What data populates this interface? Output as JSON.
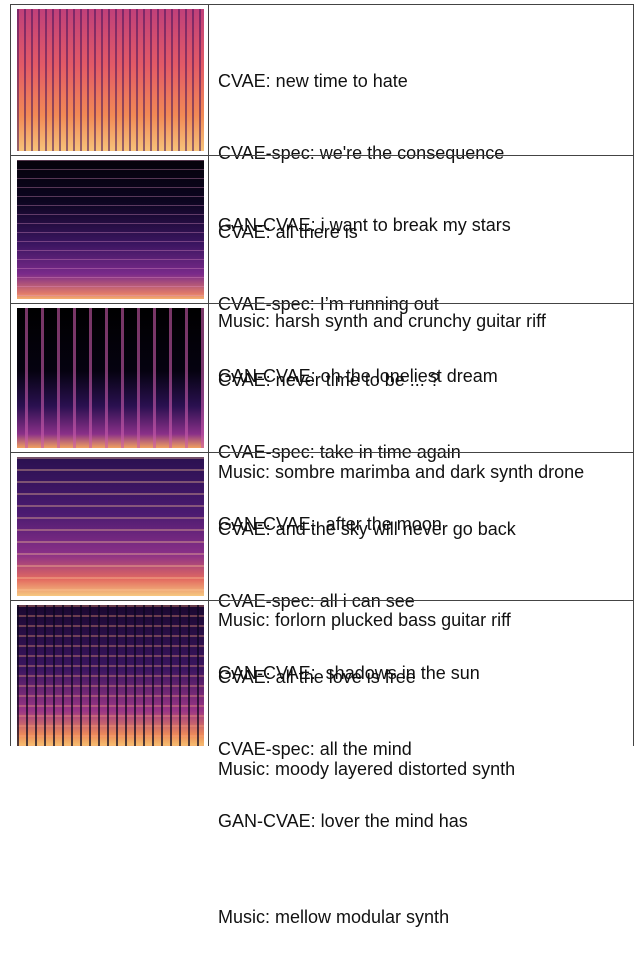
{
  "rows": [
    {
      "lines": [
        "CVAE: new time to hate",
        "CVAE-spec: we're the consequence",
        "GAN-CVAE: i want to break my stars"
      ],
      "music": "Music: harsh synth and crunchy guitar riff"
    },
    {
      "lines": [
        "CVAE: all there is",
        "CVAE-spec: I’m running out",
        "GAN-CVAE: oh the loneliest dream"
      ],
      "music": "Music: sombre marimba and dark synth drone"
    },
    {
      "lines": [
        "CVAE: never time to be ... ?",
        "CVAE-spec: take in time again",
        "GAN-CVAE:  after the moon"
      ],
      "music": "Music: forlorn plucked bass guitar riff"
    },
    {
      "lines": [
        "CVAE: and the sky will never go back",
        "CVAE-spec: all i can see",
        "GAN-CVAE:  shadows in the sun"
      ],
      "music": "Music: moody layered distorted synth"
    },
    {
      "lines": [
        "CVAE: all the love is free",
        "CVAE-spec: all the mind",
        "GAN-CVAE: lover the mind has"
      ],
      "music": "Music: mellow modular synth"
    }
  ]
}
